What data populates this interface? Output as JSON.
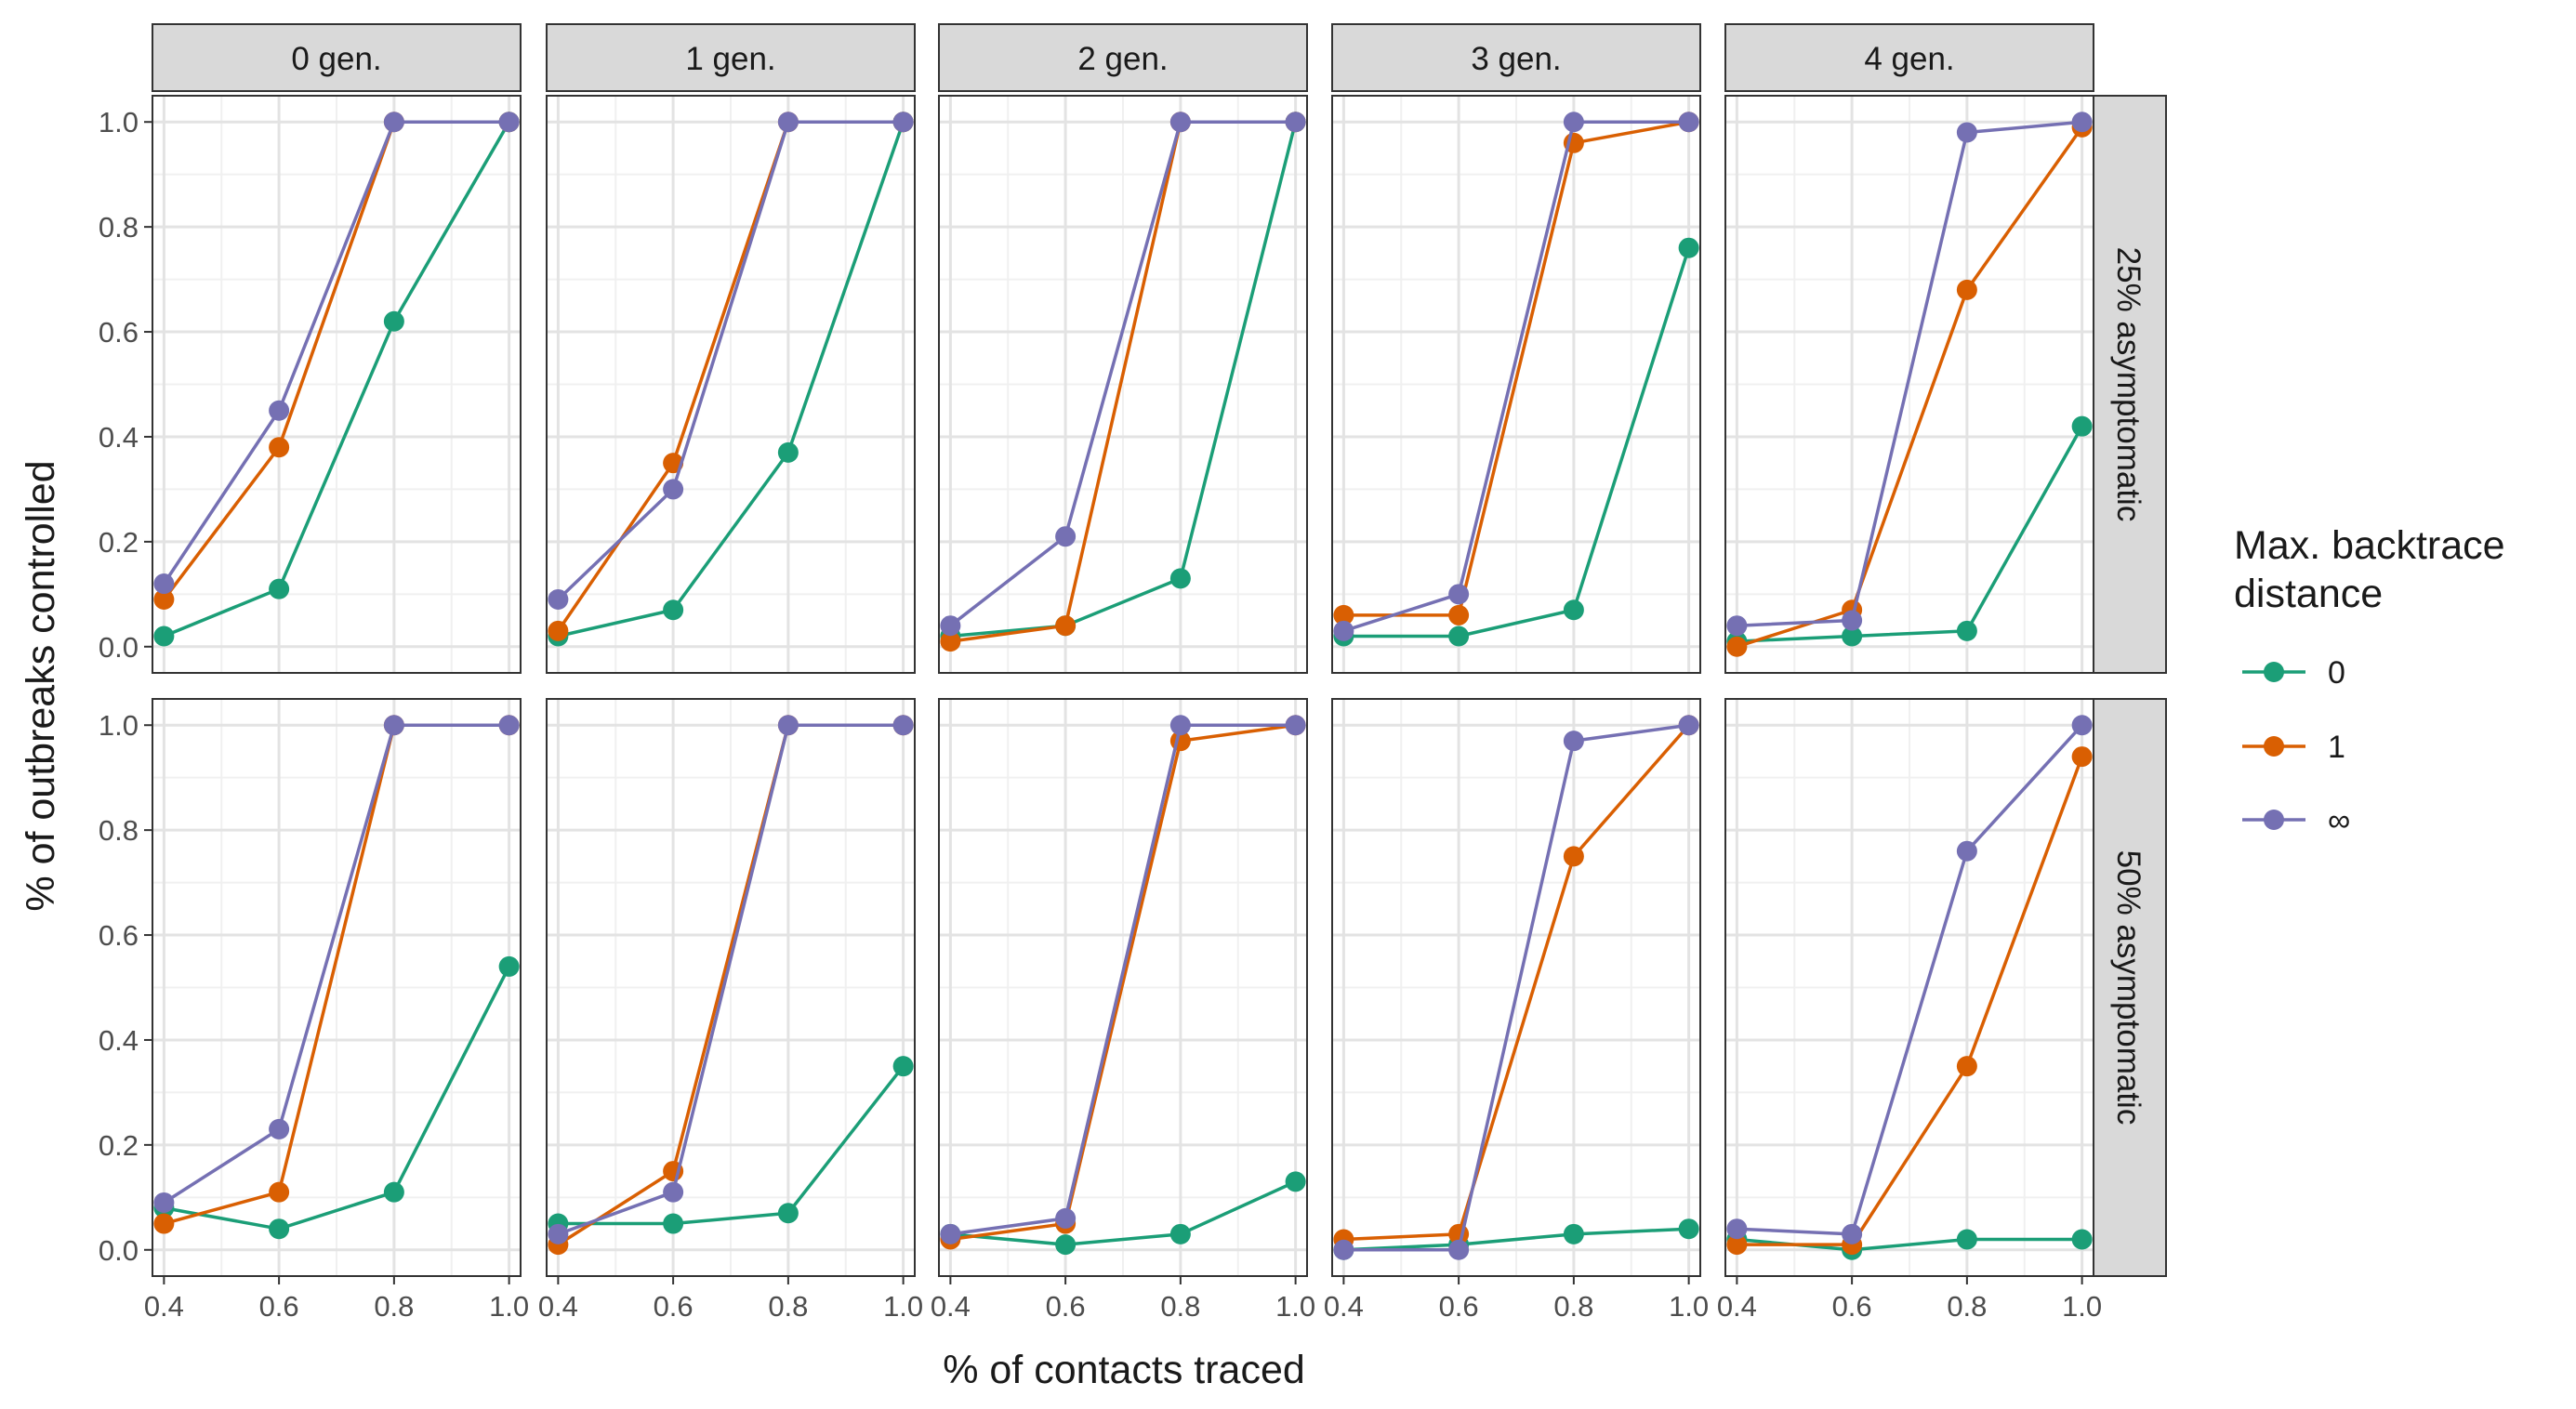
{
  "chart_data": {
    "type": "line",
    "xlabel": "% of contacts traced",
    "ylabel": "% of outbreaks controlled",
    "x": [
      0.4,
      0.6,
      0.8,
      1.0
    ],
    "x_tick_labels": [
      "0.4",
      "0.6",
      "0.8",
      "1.0"
    ],
    "y_tick_labels": [
      "0.0",
      "0.2",
      "0.4",
      "0.6",
      "0.8",
      "1.0"
    ],
    "xlim": [
      0.38,
      1.02
    ],
    "ylim": [
      -0.05,
      1.05
    ],
    "grid": true,
    "facet_columns": [
      "0 gen.",
      "1 gen.",
      "2 gen.",
      "3 gen.",
      "4 gen."
    ],
    "facet_rows": [
      "25% asymptomatic",
      "50% asymptomatic"
    ],
    "legend": {
      "title_line1": "Max. backtrace",
      "title_line2": "distance",
      "placement": "right",
      "entries": [
        "0",
        "1",
        "∞"
      ]
    },
    "series_colors": [
      "#1b9e77",
      "#d95f02",
      "#7570b3"
    ],
    "panels": [
      [
        [
          [
            0.02,
            0.11,
            0.62,
            1.0
          ],
          [
            0.09,
            0.38,
            1.0,
            1.0
          ],
          [
            0.12,
            0.45,
            1.0,
            1.0
          ]
        ],
        [
          [
            0.02,
            0.07,
            0.37,
            1.0
          ],
          [
            0.03,
            0.35,
            1.0,
            1.0
          ],
          [
            0.09,
            0.3,
            1.0,
            1.0
          ]
        ],
        [
          [
            0.02,
            0.04,
            0.13,
            1.0
          ],
          [
            0.01,
            0.04,
            1.0,
            1.0
          ],
          [
            0.04,
            0.21,
            1.0,
            1.0
          ]
        ],
        [
          [
            0.02,
            0.02,
            0.07,
            0.76
          ],
          [
            0.06,
            0.06,
            0.96,
            1.0
          ],
          [
            0.03,
            0.1,
            1.0,
            1.0
          ]
        ],
        [
          [
            0.01,
            0.02,
            0.03,
            0.42
          ],
          [
            0.0,
            0.07,
            0.68,
            0.99
          ],
          [
            0.04,
            0.05,
            0.98,
            1.0
          ]
        ]
      ],
      [
        [
          [
            0.08,
            0.04,
            0.11,
            0.54
          ],
          [
            0.05,
            0.11,
            1.0,
            1.0
          ],
          [
            0.09,
            0.23,
            1.0,
            1.0
          ]
        ],
        [
          [
            0.05,
            0.05,
            0.07,
            0.35
          ],
          [
            0.01,
            0.15,
            1.0,
            1.0
          ],
          [
            0.03,
            0.11,
            1.0,
            1.0
          ]
        ],
        [
          [
            0.03,
            0.01,
            0.03,
            0.13
          ],
          [
            0.02,
            0.05,
            0.97,
            1.0
          ],
          [
            0.03,
            0.06,
            1.0,
            1.0
          ]
        ],
        [
          [
            0.0,
            0.01,
            0.03,
            0.04
          ],
          [
            0.02,
            0.03,
            0.75,
            1.0
          ],
          [
            0.0,
            0.0,
            0.97,
            1.0
          ]
        ],
        [
          [
            0.02,
            0.0,
            0.02,
            0.02
          ],
          [
            0.01,
            0.01,
            0.35,
            0.94
          ],
          [
            0.04,
            0.03,
            0.76,
            1.0
          ]
        ]
      ]
    ]
  }
}
